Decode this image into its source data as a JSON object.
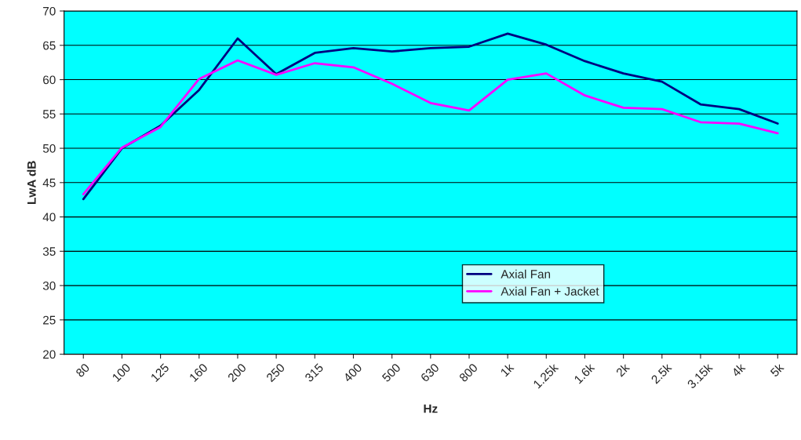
{
  "chart_data": {
    "type": "line",
    "xlabel": "Hz",
    "ylabel": "LwA dB",
    "categories": [
      "80",
      "100",
      "125",
      "160",
      "200",
      "250",
      "315",
      "400",
      "500",
      "630",
      "800",
      "1k",
      "1.25k",
      "1.6k",
      "2k",
      "2.5k",
      "3.15k",
      "4k",
      "5k"
    ],
    "series": [
      {
        "name": "Axial Fan",
        "color": "#000080",
        "values": [
          42.6,
          50.0,
          53.3,
          58.5,
          66.0,
          60.8,
          63.9,
          64.6,
          64.1,
          64.6,
          64.8,
          66.7,
          65.1,
          62.7,
          60.9,
          59.7,
          56.4,
          55.7,
          53.6
        ]
      },
      {
        "name": "Axial Fan + Jacket",
        "color": "#ff00ff",
        "values": [
          43.3,
          50.1,
          53.1,
          60.1,
          62.8,
          60.7,
          62.4,
          61.8,
          59.4,
          56.6,
          55.5,
          60.0,
          60.9,
          57.7,
          55.9,
          55.7,
          53.8,
          53.6,
          52.2
        ]
      }
    ],
    "ylim": [
      20,
      70
    ],
    "yticks": [
      20,
      25,
      30,
      35,
      40,
      45,
      50,
      55,
      60,
      65,
      70
    ],
    "grid": "y",
    "legend": "bottom",
    "marker": "none",
    "line_style": "solid"
  }
}
